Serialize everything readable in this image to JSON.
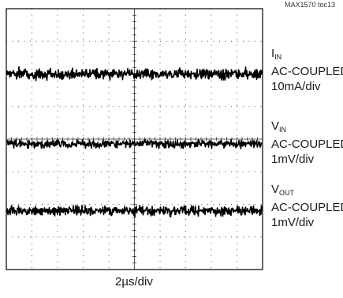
{
  "figure_id": "MAX1570 toc13",
  "timebase_label": "2µs/div",
  "chart_data": {
    "type": "line",
    "title": "",
    "xlabel": "2µs/div",
    "ylabel": "",
    "grid": true,
    "x_divisions": 10,
    "y_divisions": 8,
    "x_range": [
      0,
      10
    ],
    "y_range": [
      -4,
      4
    ],
    "legend": "right",
    "series": [
      {
        "name": "IIN",
        "name_main": "I",
        "name_sub": "IN",
        "coupling": "AC-COUPLED",
        "scale": "10mA/div",
        "baseline_div": 2.0,
        "noise_div": 0.08,
        "seed": 11
      },
      {
        "name": "VIN",
        "name_main": "V",
        "name_sub": "IN",
        "coupling": "AC-COUPLED",
        "scale": "1mV/div",
        "baseline_div": -0.15,
        "noise_div": 0.06,
        "seed": 37
      },
      {
        "name": "VOUT",
        "name_main": "V",
        "name_sub": "OUT",
        "coupling": "AC-COUPLED",
        "scale": "1mV/div",
        "baseline_div": -2.2,
        "noise_div": 0.07,
        "seed": 73
      }
    ],
    "colors": {
      "trace": "#000000",
      "frame": "#000000",
      "grid": "#555555"
    }
  }
}
